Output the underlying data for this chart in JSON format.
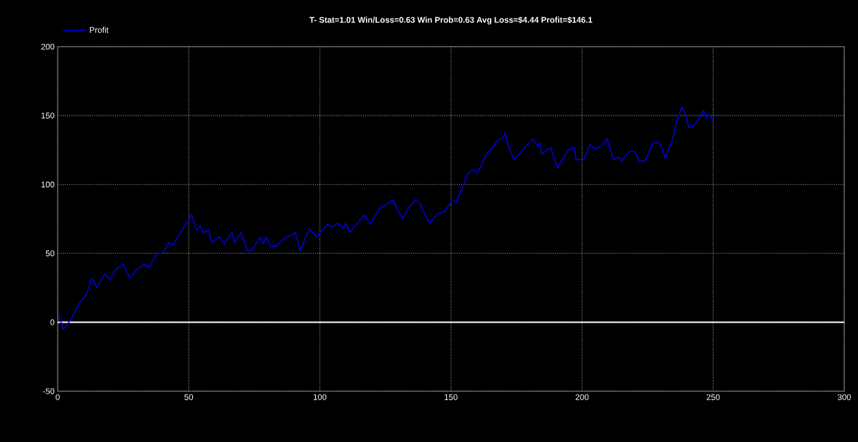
{
  "chart_data": {
    "type": "line",
    "title": "T- Stat=1.01 Win/Loss=0.63 Win Prob=0.63 Avg Loss=$4.44 Profit=$146.1",
    "series": [
      {
        "name": "Profit",
        "color": "#0000e6",
        "x": [
          0.4,
          2.2,
          5,
          8.6,
          11,
          13,
          15,
          18,
          20,
          22,
          25,
          27.5,
          30,
          33,
          35,
          38,
          40,
          42.5,
          44,
          47.8,
          51,
          53,
          54.5,
          55.3,
          57.7,
          58.7,
          61.7,
          63.5,
          66.5,
          67.4,
          70,
          72.4,
          74,
          77.2,
          78.5,
          79.4,
          81.4,
          83.2,
          87.3,
          90.8,
          92.5,
          96,
          98.7,
          103,
          105,
          106.6,
          109,
          110,
          111.3,
          117,
          119,
          123,
          125,
          128,
          130,
          131.6,
          133.8,
          136.4,
          138,
          140.8,
          142,
          145,
          147.5,
          150.4,
          152,
          156.6,
          158.4,
          160,
          163.6,
          168,
          170,
          170.6,
          171.5,
          174,
          181.2,
          183,
          184,
          184.6,
          188,
          190.7,
          194.6,
          197,
          197.7,
          200.6,
          203,
          205,
          207,
          209.6,
          212,
          214,
          215,
          218,
          220,
          221.8,
          224,
          226.7,
          228,
          230,
          231.7,
          234.6,
          236.4,
          238,
          239.3,
          240.8,
          242.2,
          244,
          246.4,
          247.4,
          248.3,
          250
        ],
        "values": [
          5,
          -5,
          2,
          15,
          20,
          32,
          25,
          35,
          31,
          38,
          42,
          32,
          38,
          42,
          40,
          50,
          50,
          58,
          56,
          68,
          78,
          67,
          70,
          65,
          67,
          58,
          62,
          57,
          65,
          58,
          65,
          52,
          52,
          62,
          57,
          62,
          55,
          55,
          62,
          65,
          52,
          68,
          62,
          71,
          69,
          72,
          68,
          72,
          65,
          78,
          71,
          83,
          85,
          89,
          80,
          75,
          83,
          89,
          87,
          75,
          72,
          79,
          80,
          89,
          87,
          108,
          111,
          108,
          122,
          132,
          134,
          138,
          130,
          118,
          133,
          128,
          130,
          122,
          127,
          112,
          125,
          127,
          118,
          118,
          129,
          126,
          127,
          133,
          118,
          120,
          117,
          124,
          124,
          117,
          117,
          129,
          131,
          129,
          119,
          133,
          148,
          156,
          152,
          141,
          142,
          146,
          154,
          148,
          151,
          146
        ]
      }
    ],
    "xlim": [
      0,
      300
    ],
    "xticks": [
      0,
      50,
      100,
      150,
      200,
      250,
      300
    ],
    "ylim": [
      -50,
      200
    ],
    "yticks": [
      -50,
      0,
      50,
      100,
      150,
      200
    ],
    "grid": true,
    "legend": "top left",
    "marker": "none",
    "line_style": "solid",
    "ref_lines": [
      {
        "axis": "y",
        "value": 0,
        "color": "#ffffff"
      }
    ]
  }
}
